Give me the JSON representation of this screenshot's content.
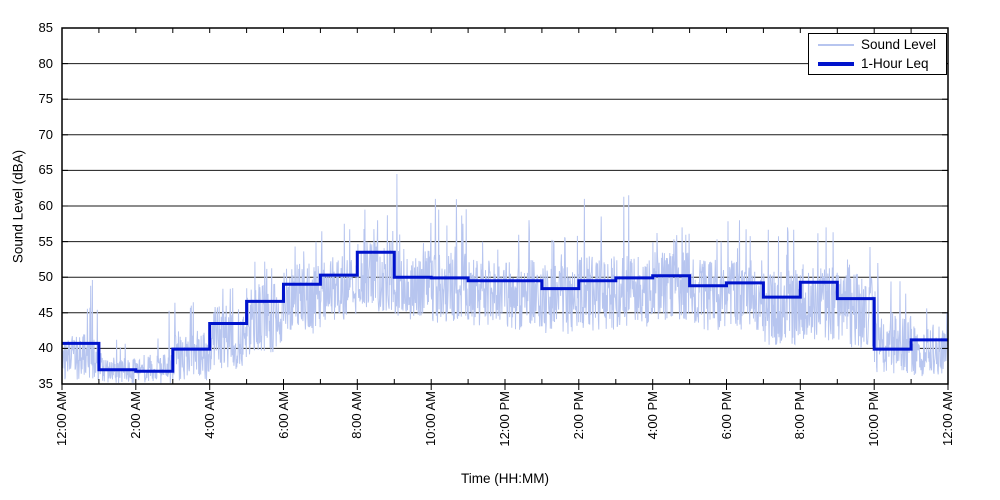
{
  "chart_data": {
    "type": "line",
    "title": "",
    "xlabel": "Time (HH:MM)",
    "ylabel": "Sound Level (dBA)",
    "ylim": [
      35,
      85
    ],
    "yticks": [
      35,
      40,
      45,
      50,
      55,
      60,
      65,
      70,
      75,
      80,
      85
    ],
    "xticks_hours": [
      0,
      2,
      4,
      6,
      8,
      10,
      12,
      14,
      16,
      18,
      20,
      22,
      24
    ],
    "xtick_labels": [
      "12:00 AM",
      "2:00 AM",
      "4:00 AM",
      "6:00 AM",
      "8:00 AM",
      "10:00 AM",
      "12:00 PM",
      "2:00 PM",
      "4:00 PM",
      "6:00 PM",
      "8:00 PM",
      "10:00 PM",
      "12:00 AM"
    ],
    "x_minor_tick_hours": 1,
    "grid": "horizontal",
    "grid_color": "#1a1a1a",
    "frame_color": "#000000",
    "legend_position": "top-right",
    "series": [
      {
        "name": "Sound Level",
        "type": "noisy_samples",
        "color": "#b7c5ef",
        "samples_per_hour": 90,
        "spike_probability": 0.035,
        "hourly_envelope_dBA": [
          [
            35.5,
            42.0,
            49.5
          ],
          [
            35.1,
            38.8,
            41.5
          ],
          [
            35.1,
            39.2,
            44.0
          ],
          [
            35.5,
            42.5,
            46.5
          ],
          [
            37.0,
            46.0,
            48.5
          ],
          [
            39.0,
            49.5,
            52.5
          ],
          [
            42.0,
            52.0,
            55.0
          ],
          [
            44.0,
            53.0,
            57.5
          ],
          [
            45.0,
            55.0,
            60.0
          ],
          [
            44.0,
            54.0,
            61.0
          ],
          [
            43.5,
            53.5,
            61.0
          ],
          [
            43.0,
            52.5,
            55.5
          ],
          [
            42.5,
            52.5,
            58.0
          ],
          [
            42.0,
            52.0,
            56.0
          ],
          [
            42.5,
            53.0,
            61.0
          ],
          [
            43.0,
            53.0,
            61.5
          ],
          [
            44.0,
            53.5,
            57.0
          ],
          [
            42.5,
            52.5,
            56.0
          ],
          [
            42.0,
            52.5,
            58.0
          ],
          [
            40.5,
            51.0,
            57.0
          ],
          [
            41.0,
            52.0,
            57.0
          ],
          [
            40.0,
            50.5,
            55.0
          ],
          [
            36.5,
            45.0,
            52.0
          ],
          [
            36.0,
            43.5,
            48.0
          ]
        ],
        "peak_events": [
          {
            "t": 0.78,
            "v": 48.8
          },
          {
            "t": 0.82,
            "v": 49.6
          },
          {
            "t": 2.9,
            "v": 45.3
          },
          {
            "t": 3.06,
            "v": 46.4
          },
          {
            "t": 7.65,
            "v": 57.5
          },
          {
            "t": 8.2,
            "v": 59.5
          },
          {
            "t": 8.55,
            "v": 58.0
          },
          {
            "t": 9.07,
            "v": 64.5
          },
          {
            "t": 10.12,
            "v": 61.0
          },
          {
            "t": 10.2,
            "v": 59.5
          },
          {
            "t": 12.65,
            "v": 58.0
          },
          {
            "t": 14.15,
            "v": 61.0
          },
          {
            "t": 15.35,
            "v": 61.5
          },
          {
            "t": 16.8,
            "v": 57.0
          },
          {
            "t": 18.35,
            "v": 58.0
          },
          {
            "t": 19.65,
            "v": 57.0
          },
          {
            "t": 20.7,
            "v": 57.0
          },
          {
            "t": 22.1,
            "v": 52.0
          }
        ]
      },
      {
        "name": "1-Hour Leq",
        "type": "step",
        "color": "#0013cc",
        "step_hours": 1,
        "hourly_leq_dBA": [
          40.7,
          37.0,
          36.8,
          39.9,
          43.5,
          46.6,
          49.0,
          50.3,
          53.5,
          50.0,
          49.9,
          49.5,
          49.5,
          48.4,
          49.5,
          49.9,
          50.2,
          48.8,
          49.2,
          47.2,
          49.3,
          47.0,
          39.9,
          41.2
        ]
      }
    ]
  }
}
